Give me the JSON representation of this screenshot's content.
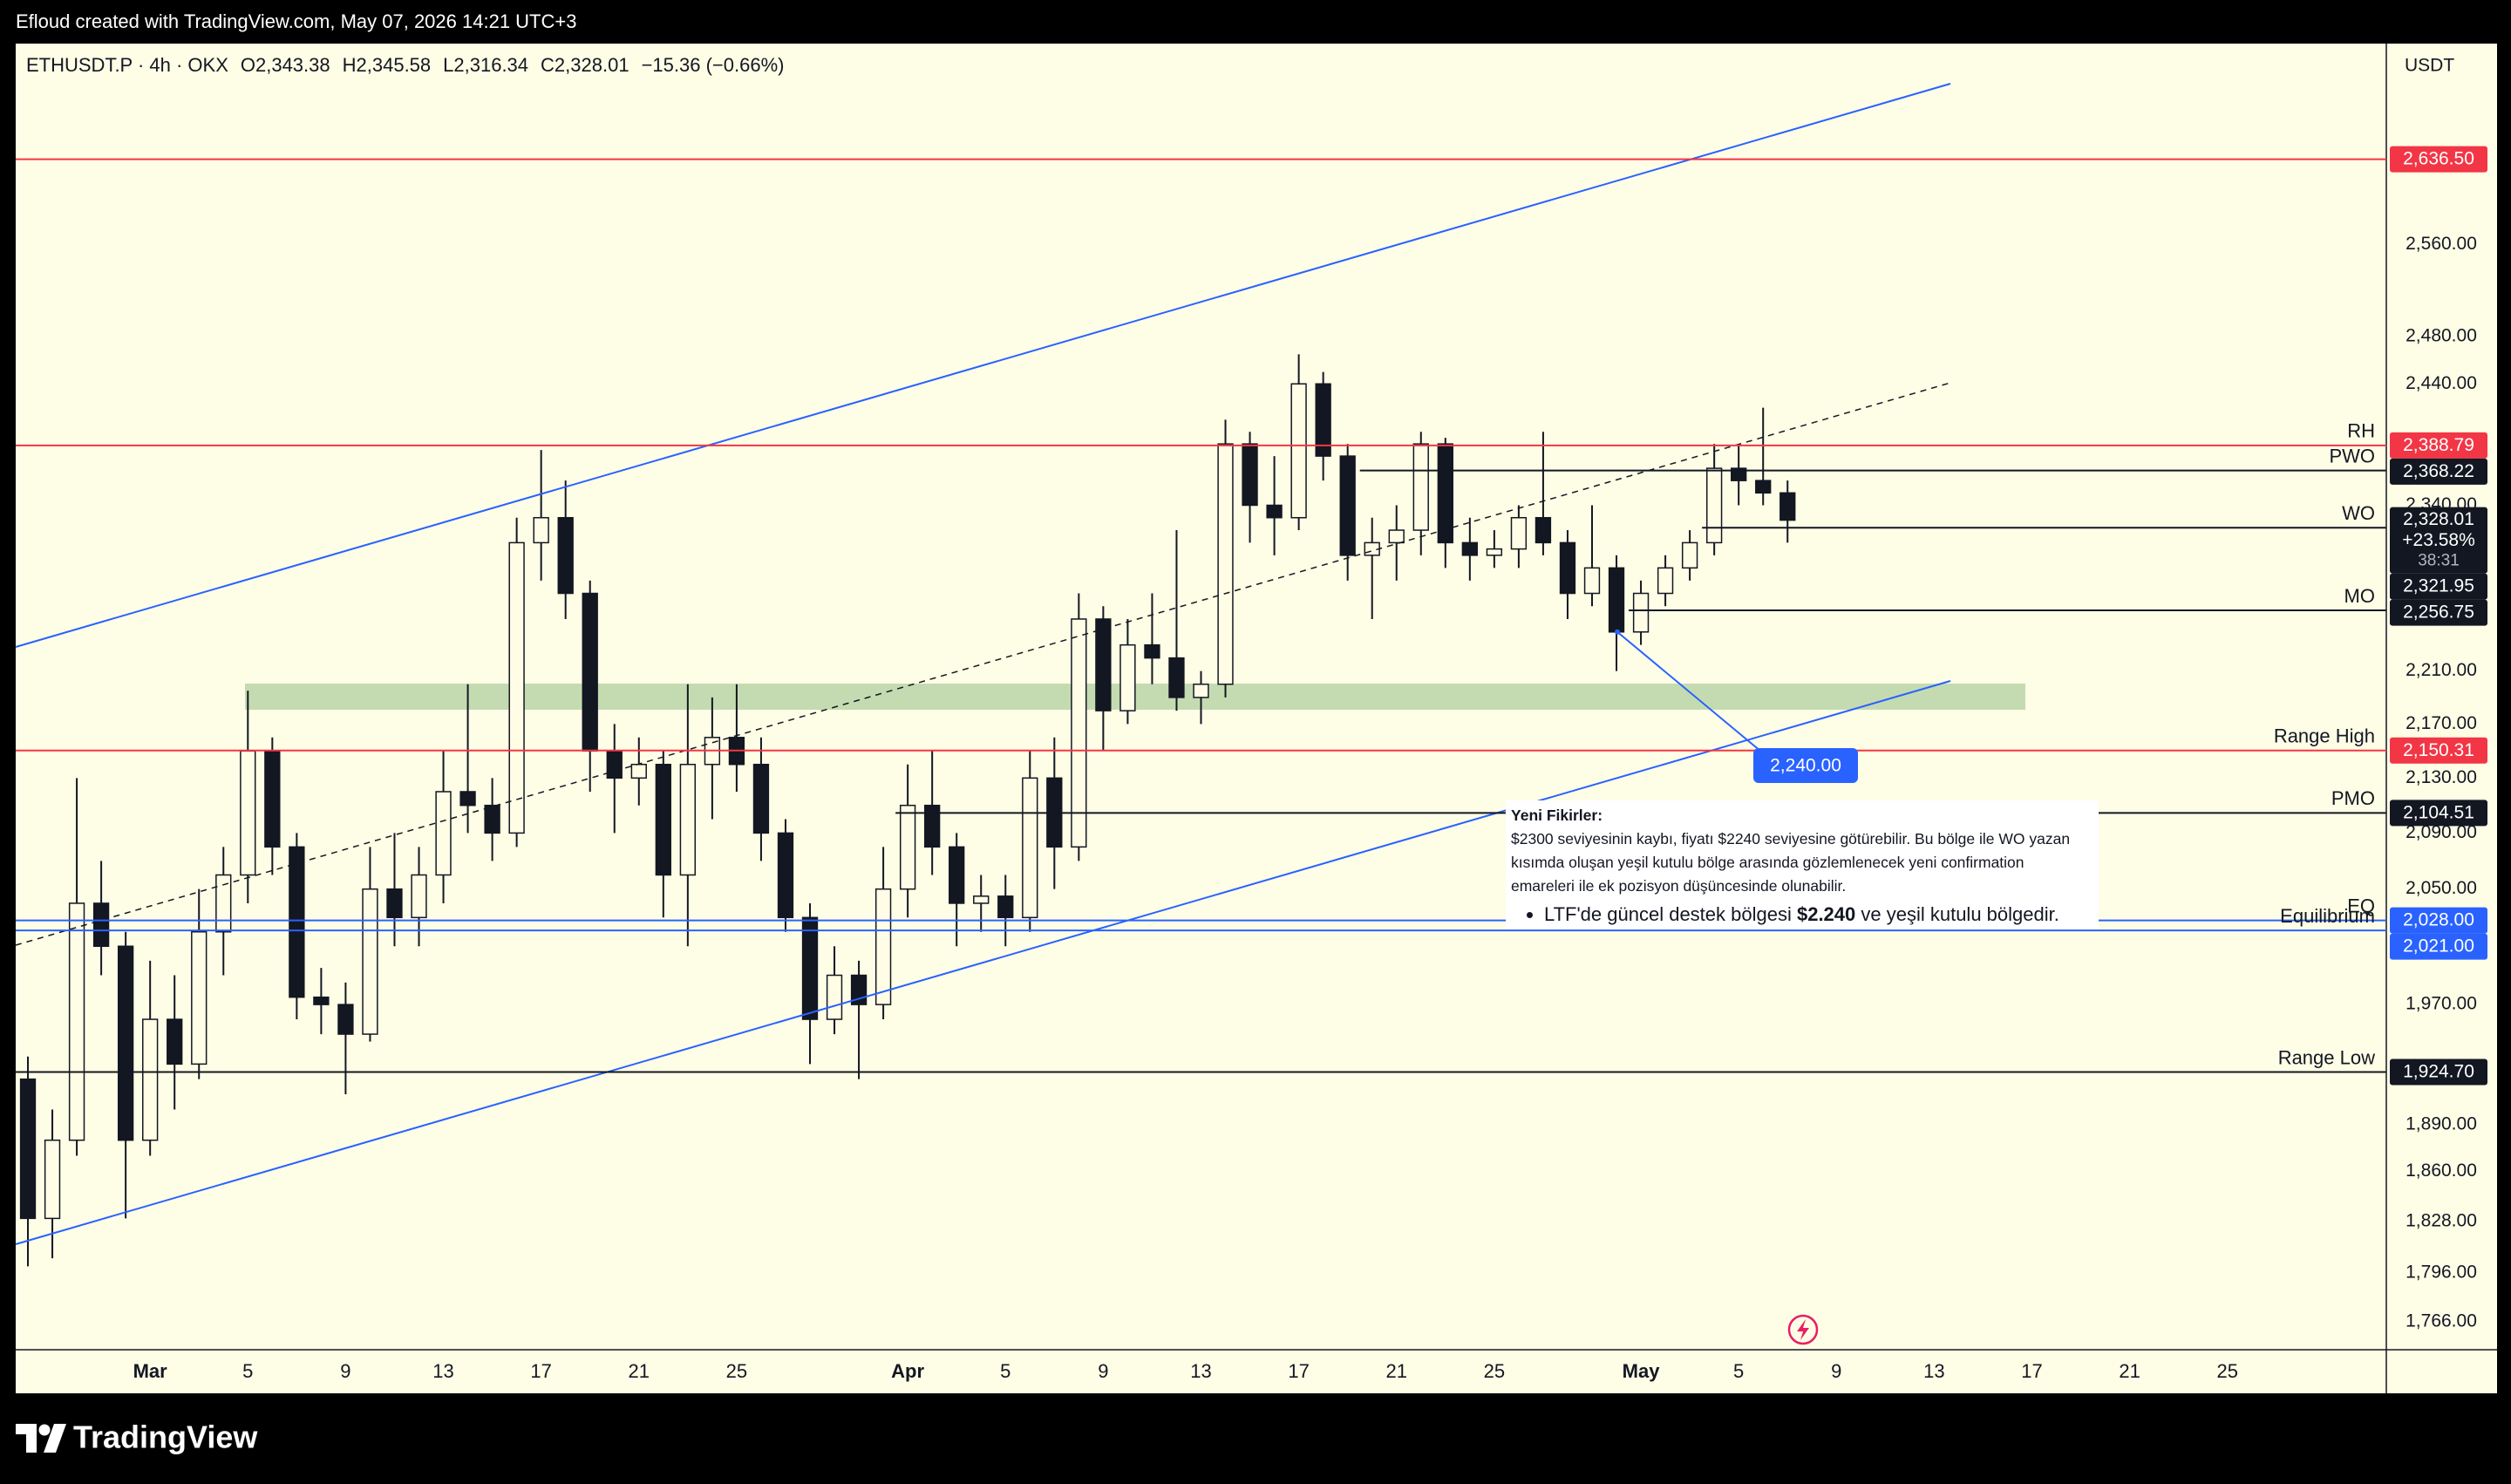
{
  "top_bar": "Efloud created with TradingView.com, May 07, 2026 14:21 UTC+3",
  "footer": {
    "brand": "TradingView"
  },
  "chart_data": {
    "type": "candlestick",
    "symbol": "ETHUSDT.P · 4h · OKX",
    "ohlc_header": [
      "O2,343.38",
      "H2,345.58",
      "L2,316.34",
      "C2,328.01",
      "−15.36 (−0.66%)"
    ],
    "currency": "USDT",
    "log_scale": true,
    "grid": false,
    "up_color": "#fffde6",
    "down_color": "#131722",
    "ylim": [
      1749,
      2744
    ],
    "yticks": [
      {
        "value": 2560,
        "label": "2,560.00"
      },
      {
        "value": 2480,
        "label": "2,480.00"
      },
      {
        "value": 2440,
        "label": "2,440.00"
      },
      {
        "value": 2340,
        "label": "2,340.00"
      },
      {
        "value": 2210,
        "label": "2,210.00"
      },
      {
        "value": 2170,
        "label": "2,170.00"
      },
      {
        "value": 2130,
        "label": "2,130.00"
      },
      {
        "value": 2090,
        "label": "2,090.00"
      },
      {
        "value": 2050,
        "label": "2,050.00"
      },
      {
        "value": 1970,
        "label": "1,970.00"
      },
      {
        "value": 1890,
        "label": "1,890.00"
      },
      {
        "value": 1860,
        "label": "1,860.00"
      },
      {
        "value": 1828,
        "label": "1,828.00"
      },
      {
        "value": 1796,
        "label": "1,796.00"
      },
      {
        "value": 1766,
        "label": "1,766.00"
      }
    ],
    "categories": [
      null,
      null,
      null,
      null,
      null,
      "Mar",
      null,
      null,
      null,
      "5",
      null,
      null,
      null,
      "9",
      null,
      null,
      null,
      "13",
      null,
      null,
      null,
      "17",
      null,
      null,
      null,
      "21",
      null,
      null,
      null,
      "25",
      null,
      null,
      null,
      null,
      null,
      null,
      "Apr",
      null,
      null,
      null,
      "5",
      null,
      null,
      null,
      "9",
      null,
      null,
      null,
      "13",
      null,
      null,
      null,
      "17",
      null,
      null,
      null,
      "21",
      null,
      null,
      null,
      "25",
      null,
      null,
      null,
      null,
      null,
      "May",
      null,
      null,
      null,
      "5",
      null,
      null,
      null,
      "9",
      null,
      null,
      null,
      "13",
      null,
      null,
      null,
      "17",
      null,
      null,
      null,
      "21",
      null,
      null,
      null,
      "25",
      null,
      null,
      null,
      null,
      null,
      null
    ],
    "ohlc": [
      [
        1920,
        1935,
        1800,
        1830
      ],
      [
        1830,
        1900,
        1805,
        1880
      ],
      [
        1880,
        2130,
        1870,
        2040
      ],
      [
        2040,
        2070,
        1990,
        2010
      ],
      [
        2010,
        2020,
        1830,
        1880
      ],
      [
        1880,
        2000,
        1870,
        1960
      ],
      [
        1960,
        1990,
        1900,
        1930
      ],
      [
        1930,
        2050,
        1920,
        2020
      ],
      [
        2020,
        2080,
        1990,
        2060
      ],
      [
        2060,
        2195,
        2040,
        2150
      ],
      [
        2150,
        2160,
        2060,
        2080
      ],
      [
        2080,
        2090,
        1960,
        1975
      ],
      [
        1975,
        1995,
        1950,
        1970
      ],
      [
        1970,
        1985,
        1910,
        1950
      ],
      [
        1950,
        2080,
        1945,
        2050
      ],
      [
        2050,
        2090,
        2010,
        2030
      ],
      [
        2030,
        2080,
        2010,
        2060
      ],
      [
        2060,
        2150,
        2040,
        2120
      ],
      [
        2120,
        2200,
        2090,
        2110
      ],
      [
        2110,
        2130,
        2070,
        2090
      ],
      [
        2090,
        2330,
        2080,
        2310
      ],
      [
        2310,
        2385,
        2280,
        2330
      ],
      [
        2330,
        2360,
        2250,
        2270
      ],
      [
        2270,
        2280,
        2120,
        2150
      ],
      [
        2150,
        2170,
        2090,
        2130
      ],
      [
        2130,
        2160,
        2110,
        2140
      ],
      [
        2140,
        2150,
        2030,
        2060
      ],
      [
        2060,
        2200,
        2010,
        2140
      ],
      [
        2140,
        2190,
        2100,
        2160
      ],
      [
        2160,
        2200,
        2120,
        2140
      ],
      [
        2140,
        2160,
        2070,
        2090
      ],
      [
        2090,
        2100,
        2020,
        2030
      ],
      [
        2030,
        2040,
        1930,
        1960
      ],
      [
        1960,
        2010,
        1950,
        1990
      ],
      [
        1990,
        2000,
        1920,
        1970
      ],
      [
        1970,
        2080,
        1960,
        2050
      ],
      [
        2050,
        2140,
        2030,
        2110
      ],
      [
        2110,
        2150,
        2060,
        2080
      ],
      [
        2080,
        2090,
        2010,
        2040
      ],
      [
        2040,
        2060,
        2020,
        2045
      ],
      [
        2045,
        2060,
        2010,
        2030
      ],
      [
        2030,
        2150,
        2020,
        2130
      ],
      [
        2130,
        2160,
        2050,
        2080
      ],
      [
        2080,
        2270,
        2070,
        2250
      ],
      [
        2250,
        2260,
        2150,
        2180
      ],
      [
        2180,
        2250,
        2170,
        2230
      ],
      [
        2230,
        2270,
        2200,
        2220
      ],
      [
        2220,
        2320,
        2180,
        2190
      ],
      [
        2190,
        2210,
        2170,
        2200
      ],
      [
        2200,
        2410,
        2190,
        2390
      ],
      [
        2390,
        2400,
        2310,
        2340
      ],
      [
        2340,
        2380,
        2300,
        2330
      ],
      [
        2330,
        2465,
        2320,
        2440
      ],
      [
        2440,
        2450,
        2360,
        2380
      ],
      [
        2380,
        2390,
        2280,
        2300
      ],
      [
        2300,
        2330,
        2250,
        2310
      ],
      [
        2310,
        2340,
        2280,
        2320
      ],
      [
        2320,
        2400,
        2300,
        2390
      ],
      [
        2390,
        2395,
        2290,
        2310
      ],
      [
        2310,
        2330,
        2280,
        2300
      ],
      [
        2300,
        2320,
        2290,
        2305
      ],
      [
        2305,
        2340,
        2290,
        2330
      ],
      [
        2330,
        2400,
        2300,
        2310
      ],
      [
        2310,
        2320,
        2250,
        2270
      ],
      [
        2270,
        2340,
        2260,
        2290
      ],
      [
        2290,
        2300,
        2210,
        2240
      ],
      [
        2240,
        2280,
        2230,
        2270
      ],
      [
        2270,
        2300,
        2260,
        2290
      ],
      [
        2290,
        2320,
        2280,
        2310
      ],
      [
        2310,
        2390,
        2300,
        2370
      ],
      [
        2370,
        2390,
        2340,
        2360
      ],
      [
        2360,
        2420,
        2340,
        2350
      ],
      [
        2350,
        2360,
        2310,
        2328.01
      ],
      null,
      null,
      null,
      null,
      null,
      null,
      null,
      null,
      null,
      null,
      null,
      null,
      null,
      null,
      null,
      null,
      null,
      null,
      null,
      null,
      null,
      null,
      null,
      null
    ],
    "levels": [
      {
        "price": {
          "value": 2636.5,
          "label": "2,636.50"
        },
        "color": "#f23645"
      },
      {
        "name": "RH",
        "price": {
          "value": 2388.79,
          "label": "2,388.79"
        },
        "color": "#f23645"
      },
      {
        "name": "PWO",
        "price": {
          "value": 2368.22,
          "label": "2,368.22"
        },
        "color": "#131722",
        "start": 55
      },
      {
        "name": "WO",
        "price": {
          "value": 2321.95,
          "label": "2,321.95"
        },
        "color": "#131722",
        "start": 69
      },
      {
        "name": "MO",
        "price": {
          "value": 2256.75,
          "label": "2,256.75"
        },
        "color": "#131722",
        "start": 66
      },
      {
        "name": "Range High",
        "price": {
          "value": 2150.31,
          "label": "2,150.31"
        },
        "color": "#f23645"
      },
      {
        "name": "PMO",
        "price": {
          "value": 2104.51,
          "label": "2,104.51"
        },
        "color": "#131722",
        "start": 36
      },
      {
        "name": "EQ",
        "price": {
          "value": 2028,
          "label": "2,028.00"
        },
        "color": "#2962ff"
      },
      {
        "name": "Equilibrium",
        "price": {
          "value": 2021,
          "label": "2,021.00"
        },
        "color": "#2962ff"
      },
      {
        "name": "Range Low",
        "price": {
          "value": 1924.7,
          "label": "1,924.70"
        },
        "color": "#131722"
      }
    ],
    "last": {
      "price": {
        "value": 2328.01,
        "label": "2,328.01"
      },
      "change": "+23.58%",
      "countdown": "38:31",
      "color": "#131722"
    },
    "price_note": {
      "price": {
        "value": 2240,
        "label": "2,240.00"
      },
      "color": "#2962ff"
    },
    "note": {
      "title": "Yeni Fikirler:",
      "text": "$2300 seviyesinin kaybı, fiyatı $2240 seviyesine götürebilir. Bu bölge ile WO yazan kısımda oluşan yeşil kutulu bölge arasında gözlemlenecek yeni confirmation emareleri ile ek pozisyon düşüncesinde olunabilir.",
      "bullet": [
        "LTF'de güncel destek bölgesi ",
        "$2.240",
        " ve yeşil kutulu bölgedir."
      ]
    }
  }
}
